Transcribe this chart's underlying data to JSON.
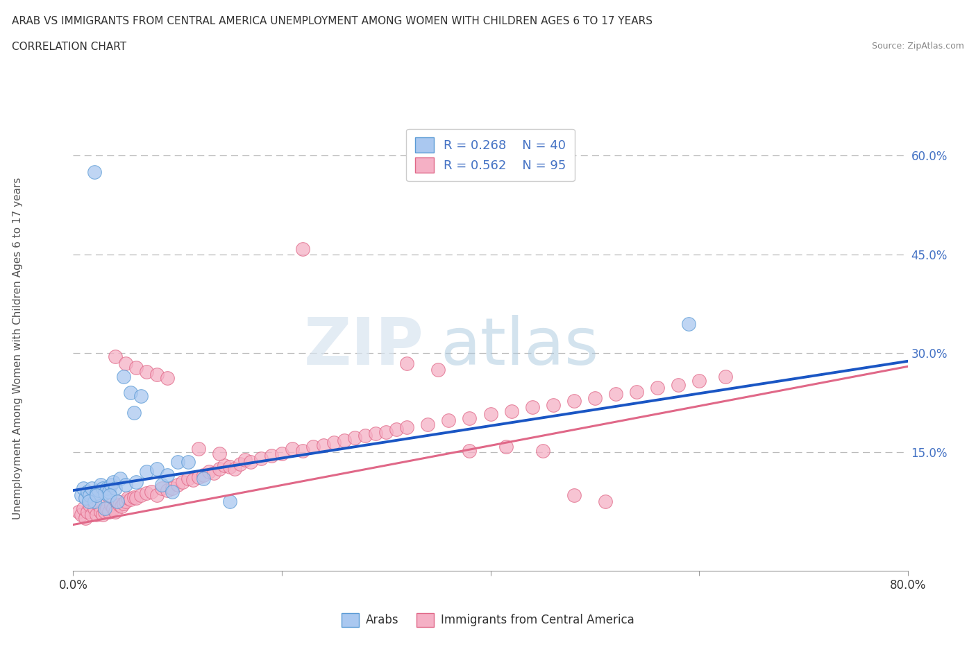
{
  "title_line1": "ARAB VS IMMIGRANTS FROM CENTRAL AMERICA UNEMPLOYMENT AMONG WOMEN WITH CHILDREN AGES 6 TO 17 YEARS",
  "title_line2": "CORRELATION CHART",
  "source": "Source: ZipAtlas.com",
  "ylabel": "Unemployment Among Women with Children Ages 6 to 17 years",
  "xlim": [
    0.0,
    0.8
  ],
  "ylim": [
    -0.03,
    0.65
  ],
  "yticks_right": [
    0.15,
    0.3,
    0.45,
    0.6
  ],
  "ytick_labels_right": [
    "15.0%",
    "30.0%",
    "45.0%",
    "60.0%"
  ],
  "watermark_zip": "ZIP",
  "watermark_atlas": "atlas",
  "legend_r1": "R = 0.268",
  "legend_n1": "N = 40",
  "legend_r2": "R = 0.562",
  "legend_n2": "N = 95",
  "arab_color": "#aac8f0",
  "arab_edge_color": "#5b9bd5",
  "central_color": "#f5b0c5",
  "central_edge_color": "#e06888",
  "blue_line_color": "#1a56c4",
  "pink_line_color": "#e06888",
  "grid_color": "#bbbbbb",
  "bg_color": "#ffffff",
  "arab_intercept": 0.092,
  "arab_slope": 0.245,
  "central_intercept": 0.04,
  "central_slope": 0.3,
  "arab_x": [
    0.008,
    0.01,
    0.012,
    0.014,
    0.016,
    0.018,
    0.02,
    0.022,
    0.024,
    0.026,
    0.028,
    0.03,
    0.032,
    0.034,
    0.036,
    0.038,
    0.04,
    0.045,
    0.05,
    0.055,
    0.06,
    0.065,
    0.07,
    0.08,
    0.085,
    0.09,
    0.095,
    0.1,
    0.11,
    0.125,
    0.015,
    0.022,
    0.03,
    0.035,
    0.042,
    0.048,
    0.058,
    0.15,
    0.59,
    0.02
  ],
  "arab_y": [
    0.085,
    0.095,
    0.08,
    0.09,
    0.085,
    0.095,
    0.075,
    0.088,
    0.092,
    0.1,
    0.095,
    0.088,
    0.095,
    0.09,
    0.1,
    0.105,
    0.095,
    0.11,
    0.1,
    0.24,
    0.105,
    0.235,
    0.12,
    0.125,
    0.1,
    0.115,
    0.09,
    0.135,
    0.135,
    0.11,
    0.075,
    0.085,
    0.065,
    0.085,
    0.075,
    0.265,
    0.21,
    0.075,
    0.345,
    0.575
  ],
  "central_x": [
    0.005,
    0.008,
    0.01,
    0.012,
    0.014,
    0.016,
    0.018,
    0.02,
    0.022,
    0.024,
    0.026,
    0.028,
    0.03,
    0.032,
    0.034,
    0.036,
    0.038,
    0.04,
    0.042,
    0.044,
    0.046,
    0.048,
    0.05,
    0.052,
    0.055,
    0.058,
    0.06,
    0.065,
    0.07,
    0.075,
    0.08,
    0.085,
    0.09,
    0.095,
    0.1,
    0.105,
    0.11,
    0.115,
    0.12,
    0.125,
    0.13,
    0.135,
    0.14,
    0.145,
    0.15,
    0.155,
    0.16,
    0.165,
    0.17,
    0.18,
    0.19,
    0.2,
    0.21,
    0.22,
    0.23,
    0.24,
    0.25,
    0.26,
    0.27,
    0.28,
    0.29,
    0.3,
    0.31,
    0.32,
    0.34,
    0.35,
    0.36,
    0.38,
    0.4,
    0.42,
    0.44,
    0.46,
    0.48,
    0.5,
    0.52,
    0.54,
    0.56,
    0.58,
    0.6,
    0.625,
    0.04,
    0.05,
    0.06,
    0.07,
    0.08,
    0.09,
    0.12,
    0.14,
    0.22,
    0.32,
    0.38,
    0.415,
    0.45,
    0.48,
    0.51
  ],
  "central_y": [
    0.06,
    0.055,
    0.065,
    0.05,
    0.06,
    0.07,
    0.055,
    0.065,
    0.055,
    0.07,
    0.06,
    0.055,
    0.06,
    0.065,
    0.06,
    0.07,
    0.065,
    0.06,
    0.075,
    0.07,
    0.068,
    0.072,
    0.075,
    0.08,
    0.078,
    0.082,
    0.08,
    0.085,
    0.088,
    0.09,
    0.085,
    0.095,
    0.092,
    0.095,
    0.1,
    0.105,
    0.11,
    0.108,
    0.112,
    0.115,
    0.12,
    0.118,
    0.125,
    0.13,
    0.128,
    0.125,
    0.132,
    0.138,
    0.135,
    0.14,
    0.145,
    0.148,
    0.155,
    0.152,
    0.158,
    0.16,
    0.165,
    0.168,
    0.172,
    0.175,
    0.178,
    0.18,
    0.185,
    0.188,
    0.192,
    0.275,
    0.198,
    0.202,
    0.208,
    0.212,
    0.218,
    0.222,
    0.228,
    0.232,
    0.238,
    0.242,
    0.248,
    0.252,
    0.258,
    0.265,
    0.295,
    0.285,
    0.278,
    0.272,
    0.268,
    0.262,
    0.155,
    0.148,
    0.458,
    0.285,
    0.152,
    0.158,
    0.152,
    0.085,
    0.075
  ]
}
